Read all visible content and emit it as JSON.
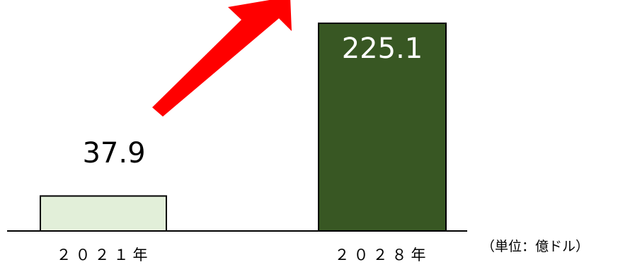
{
  "chart_data": {
    "type": "bar",
    "categories": [
      "２０２１年",
      "２０２８年"
    ],
    "values": [
      37.9,
      225.1
    ],
    "value_labels": [
      "37.9",
      "225.1"
    ],
    "unit_label": "（単位：億ドル）",
    "title": "",
    "xlabel": "",
    "ylabel": "",
    "ylim": [
      0,
      235
    ],
    "grid": false,
    "legend": "none",
    "colors": {
      "bar_2021": "#e2efd9",
      "bar_2028": "#385723",
      "bar_border": "#000000",
      "arrow": "#ff0000",
      "label_on_dark": "#ffffff",
      "label_on_light": "#000000"
    }
  }
}
